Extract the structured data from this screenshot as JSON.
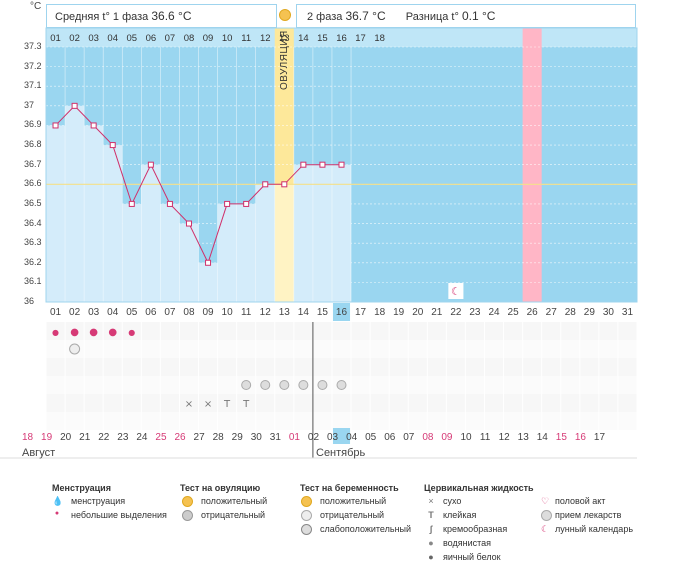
{
  "chart_data": {
    "type": "line",
    "title": "",
    "ylabel": "°C",
    "ylim": [
      36,
      37.3
    ],
    "y_ticks": [
      "37.3",
      "37.2",
      "37.1",
      "37",
      "36.9",
      "36.8",
      "36.7",
      "36.6",
      "36.5",
      "36.4",
      "36.3",
      "36.2",
      "36.1",
      "36"
    ],
    "days": [
      "01",
      "02",
      "03",
      "04",
      "05",
      "06",
      "07",
      "08",
      "09",
      "10",
      "11",
      "12",
      "13",
      "14",
      "15",
      "16",
      "17",
      "18",
      "19",
      "20",
      "21",
      "22",
      "23",
      "24",
      "25",
      "26",
      "27",
      "28",
      "29",
      "30",
      "31"
    ],
    "temperatures": [
      36.9,
      37.0,
      36.9,
      36.8,
      36.5,
      36.7,
      36.5,
      36.4,
      36.2,
      36.5,
      36.5,
      36.6,
      36.6,
      36.7,
      36.7,
      36.7
    ],
    "coverline": 36.6,
    "ovulation_day_index": 12,
    "today_index": 15,
    "highlight_day_index": 25,
    "moon_day_index": 21,
    "top_days": [
      "01",
      "02",
      "03",
      "04",
      "05",
      "06",
      "07",
      "08",
      "09",
      "10",
      "11",
      "12",
      "13",
      "14",
      "15",
      "16",
      "17",
      "18"
    ],
    "dates": [
      "18",
      "19",
      "20",
      "21",
      "22",
      "23",
      "24",
      "25",
      "26",
      "27",
      "28",
      "29",
      "30",
      "31",
      "01",
      "02",
      "03",
      "04",
      "05",
      "06",
      "07",
      "08",
      "09",
      "10",
      "11",
      "12",
      "13",
      "14",
      "15",
      "16",
      "17"
    ],
    "red_date_indices": [
      0,
      1,
      7,
      8,
      14,
      21,
      22,
      28,
      29
    ]
  },
  "header": {
    "phase1_label": "Средняя t° 1 фаза",
    "phase1_value": "36.6 °C",
    "phase2_label": "2 фаза",
    "phase2_value": "36.7 °C",
    "diff_label": "Разница t°",
    "diff_value": "0.1 °C"
  },
  "ovulation_label": "ОВУЛЯЦИЯ",
  "month1": "Август",
  "month2": "Сентябрь",
  "legend": {
    "menstruation": {
      "title": "Менструация",
      "items": [
        "менструация",
        "небольшие выделения"
      ]
    },
    "ovulation_test": {
      "title": "Тест на овуляцию",
      "items": [
        "положительный",
        "отрицательный"
      ]
    },
    "pregnancy_test": {
      "title": "Тест на беременность",
      "items": [
        "положительный",
        "отрицательный",
        "слабоположительный"
      ]
    },
    "cervical_fluid": {
      "title": "Цервикальная жидкость",
      "items": [
        "сухо",
        "клейкая",
        "кремообразная",
        "водянистая",
        "яичный белок"
      ]
    },
    "other": {
      "items": [
        "половой акт",
        "прием лекарств",
        "лунный календарь"
      ]
    }
  },
  "colors": {
    "sky": "#9ad6f0",
    "bar": "#d4ecfa",
    "ovulation": "#fde89a",
    "pink": "#ffb6c6",
    "line": "#d0306a"
  }
}
